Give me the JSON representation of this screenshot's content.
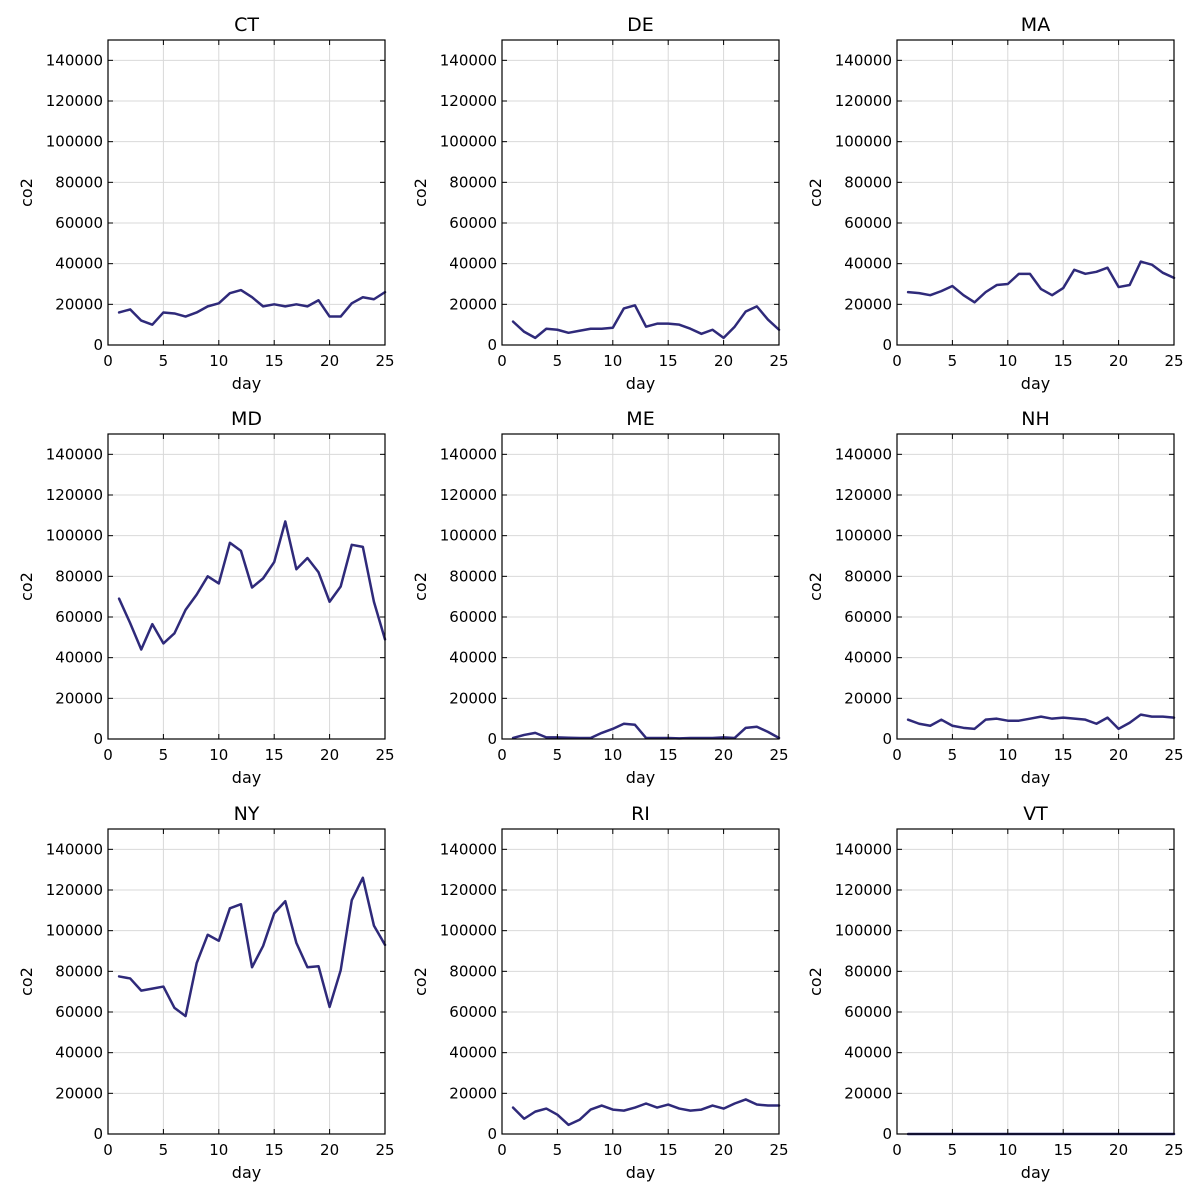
{
  "chart_data": [
    {
      "type": "line",
      "title": "CT",
      "xlabel": "day",
      "ylabel": "co2",
      "xlim": [
        0,
        25
      ],
      "ylim": [
        0,
        150000
      ],
      "xticks": [
        0,
        5,
        10,
        15,
        20,
        25
      ],
      "yticks": [
        0,
        20000,
        40000,
        60000,
        80000,
        100000,
        120000,
        140000
      ],
      "grid": true,
      "series": [
        {
          "color": "#2f2a7a",
          "x": [
            1,
            2,
            3,
            4,
            5,
            6,
            7,
            8,
            9,
            10,
            11,
            12,
            13,
            14,
            15,
            16,
            17,
            18,
            19,
            20,
            21,
            22,
            23,
            24,
            25
          ],
          "y": [
            16000,
            17500,
            12000,
            10000,
            16000,
            15500,
            14000,
            16000,
            19000,
            20500,
            25500,
            27000,
            23500,
            19000,
            20000,
            19000,
            20000,
            19000,
            22000,
            14000,
            14000,
            20500,
            23500,
            22500,
            26000
          ]
        }
      ]
    },
    {
      "type": "line",
      "title": "DE",
      "xlabel": "day",
      "ylabel": "co2",
      "xlim": [
        0,
        25
      ],
      "ylim": [
        0,
        150000
      ],
      "xticks": [
        0,
        5,
        10,
        15,
        20,
        25
      ],
      "yticks": [
        0,
        20000,
        40000,
        60000,
        80000,
        100000,
        120000,
        140000
      ],
      "grid": true,
      "series": [
        {
          "color": "#2f2a7a",
          "x": [
            1,
            2,
            3,
            4,
            5,
            6,
            7,
            8,
            9,
            10,
            11,
            12,
            13,
            14,
            15,
            16,
            17,
            18,
            19,
            20,
            21,
            22,
            23,
            24,
            25
          ],
          "y": [
            11500,
            6500,
            3500,
            8000,
            7500,
            6000,
            7000,
            8000,
            8000,
            8500,
            18000,
            19500,
            9000,
            10500,
            10500,
            10000,
            8000,
            5500,
            7500,
            3500,
            9000,
            16500,
            19000,
            12500,
            7500
          ]
        }
      ]
    },
    {
      "type": "line",
      "title": "MA",
      "xlabel": "day",
      "ylabel": "co2",
      "xlim": [
        0,
        25
      ],
      "ylim": [
        0,
        150000
      ],
      "xticks": [
        0,
        5,
        10,
        15,
        20,
        25
      ],
      "yticks": [
        0,
        20000,
        40000,
        60000,
        80000,
        100000,
        120000,
        140000
      ],
      "grid": true,
      "series": [
        {
          "color": "#2f2a7a",
          "x": [
            1,
            2,
            3,
            4,
            5,
            6,
            7,
            8,
            9,
            10,
            11,
            12,
            13,
            14,
            15,
            16,
            17,
            18,
            19,
            20,
            21,
            22,
            23,
            24,
            25
          ],
          "y": [
            26000,
            25500,
            24500,
            26500,
            29000,
            24500,
            21000,
            26000,
            29500,
            30000,
            35000,
            35000,
            27500,
            24500,
            28000,
            37000,
            35000,
            36000,
            38000,
            28500,
            29500,
            41000,
            39500,
            35500,
            33000
          ]
        }
      ]
    },
    {
      "type": "line",
      "title": "MD",
      "xlabel": "day",
      "ylabel": "co2",
      "xlim": [
        0,
        25
      ],
      "ylim": [
        0,
        150000
      ],
      "xticks": [
        0,
        5,
        10,
        15,
        20,
        25
      ],
      "yticks": [
        0,
        20000,
        40000,
        60000,
        80000,
        100000,
        120000,
        140000
      ],
      "grid": true,
      "series": [
        {
          "color": "#2f2a7a",
          "x": [
            1,
            2,
            3,
            4,
            5,
            6,
            7,
            8,
            9,
            10,
            11,
            12,
            13,
            14,
            15,
            16,
            17,
            18,
            19,
            20,
            21,
            22,
            23,
            24,
            25
          ],
          "y": [
            69000,
            57000,
            44000,
            56500,
            47000,
            52000,
            63500,
            71000,
            80000,
            76500,
            96500,
            92500,
            74500,
            79000,
            87000,
            107000,
            83500,
            89000,
            82000,
            67500,
            75000,
            95500,
            94500,
            67500,
            49000
          ]
        }
      ]
    },
    {
      "type": "line",
      "title": "ME",
      "xlabel": "day",
      "ylabel": "co2",
      "xlim": [
        0,
        25
      ],
      "ylim": [
        0,
        150000
      ],
      "xticks": [
        0,
        5,
        10,
        15,
        20,
        25
      ],
      "yticks": [
        0,
        20000,
        40000,
        60000,
        80000,
        100000,
        120000,
        140000
      ],
      "grid": true,
      "series": [
        {
          "color": "#2f2a7a",
          "x": [
            1,
            2,
            3,
            4,
            5,
            6,
            7,
            8,
            9,
            10,
            11,
            12,
            13,
            14,
            15,
            16,
            17,
            18,
            19,
            20,
            21,
            22,
            23,
            24,
            25
          ],
          "y": [
            500,
            2000,
            3000,
            800,
            800,
            600,
            500,
            500,
            3000,
            5000,
            7500,
            7000,
            500,
            500,
            500,
            300,
            500,
            500,
            500,
            800,
            500,
            5500,
            6000,
            3500,
            500
          ]
        }
      ]
    },
    {
      "type": "line",
      "title": "NH",
      "xlabel": "day",
      "ylabel": "co2",
      "xlim": [
        0,
        25
      ],
      "ylim": [
        0,
        150000
      ],
      "xticks": [
        0,
        5,
        10,
        15,
        20,
        25
      ],
      "yticks": [
        0,
        20000,
        40000,
        60000,
        80000,
        100000,
        120000,
        140000
      ],
      "grid": true,
      "series": [
        {
          "color": "#2f2a7a",
          "x": [
            1,
            2,
            3,
            4,
            5,
            6,
            7,
            8,
            9,
            10,
            11,
            12,
            13,
            14,
            15,
            16,
            17,
            18,
            19,
            20,
            21,
            22,
            23,
            24,
            25
          ],
          "y": [
            9500,
            7500,
            6500,
            9500,
            6500,
            5500,
            5000,
            9500,
            10000,
            9000,
            9000,
            10000,
            11000,
            10000,
            10500,
            10000,
            9500,
            7500,
            10500,
            5000,
            8000,
            12000,
            11000,
            11000,
            10500
          ]
        }
      ]
    },
    {
      "type": "line",
      "title": "NY",
      "xlabel": "day",
      "ylabel": "co2",
      "xlim": [
        0,
        25
      ],
      "ylim": [
        0,
        150000
      ],
      "xticks": [
        0,
        5,
        10,
        15,
        20,
        25
      ],
      "yticks": [
        0,
        20000,
        40000,
        60000,
        80000,
        100000,
        120000,
        140000
      ],
      "grid": true,
      "series": [
        {
          "color": "#2f2a7a",
          "x": [
            1,
            2,
            3,
            4,
            5,
            6,
            7,
            8,
            9,
            10,
            11,
            12,
            13,
            14,
            15,
            16,
            17,
            18,
            19,
            20,
            21,
            22,
            23,
            24,
            25
          ],
          "y": [
            77500,
            76500,
            70500,
            71500,
            72500,
            62000,
            58000,
            84000,
            98000,
            95000,
            111000,
            113000,
            82000,
            92500,
            108500,
            114500,
            94000,
            82000,
            82500,
            62500,
            80500,
            115000,
            126000,
            102500,
            93000
          ]
        }
      ]
    },
    {
      "type": "line",
      "title": "RI",
      "xlabel": "day",
      "ylabel": "co2",
      "xlim": [
        0,
        25
      ],
      "ylim": [
        0,
        150000
      ],
      "xticks": [
        0,
        5,
        10,
        15,
        20,
        25
      ],
      "yticks": [
        0,
        20000,
        40000,
        60000,
        80000,
        100000,
        120000,
        140000
      ],
      "grid": true,
      "series": [
        {
          "color": "#2f2a7a",
          "x": [
            1,
            2,
            3,
            4,
            5,
            6,
            7,
            8,
            9,
            10,
            11,
            12,
            13,
            14,
            15,
            16,
            17,
            18,
            19,
            20,
            21,
            22,
            23,
            24,
            25
          ],
          "y": [
            13000,
            7500,
            11000,
            12500,
            9500,
            4500,
            7000,
            12000,
            14000,
            12000,
            11500,
            13000,
            15000,
            13000,
            14500,
            12500,
            11500,
            12000,
            14000,
            12500,
            15000,
            17000,
            14500,
            14000,
            14000
          ]
        }
      ]
    },
    {
      "type": "line",
      "title": "VT",
      "xlabel": "day",
      "ylabel": "co2",
      "xlim": [
        0,
        25
      ],
      "ylim": [
        0,
        150000
      ],
      "xticks": [
        0,
        5,
        10,
        15,
        20,
        25
      ],
      "yticks": [
        0,
        20000,
        40000,
        60000,
        80000,
        100000,
        120000,
        140000
      ],
      "grid": true,
      "series": [
        {
          "color": "#2f2a7a",
          "x": [
            1,
            2,
            3,
            4,
            5,
            6,
            7,
            8,
            9,
            10,
            11,
            12,
            13,
            14,
            15,
            16,
            17,
            18,
            19,
            20,
            21,
            22,
            23,
            24,
            25
          ],
          "y": [
            0,
            0,
            0,
            0,
            0,
            0,
            0,
            0,
            0,
            0,
            0,
            0,
            0,
            0,
            0,
            0,
            0,
            0,
            0,
            0,
            0,
            0,
            0,
            0,
            0
          ]
        }
      ]
    }
  ]
}
